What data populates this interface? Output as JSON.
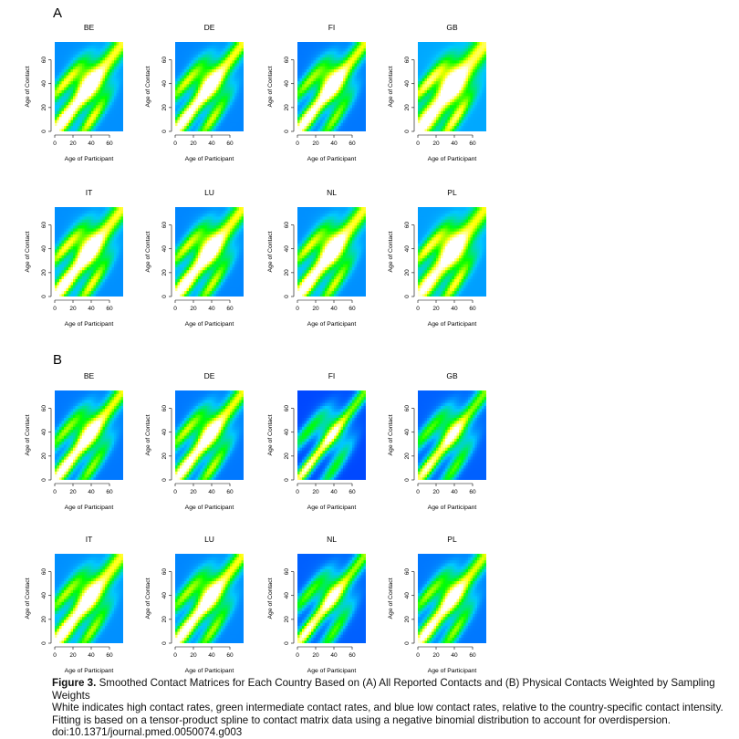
{
  "panels": [
    {
      "letter": "A",
      "label": "All Reported Contacts"
    },
    {
      "letter": "B",
      "label": "Physical Contacts"
    }
  ],
  "caption": {
    "label": "Figure 3.",
    "title": "Smoothed Contact Matrices for Each Country Based on (A) All Reported Contacts and (B) Physical Contacts Weighted by Sampling Weights",
    "body": "White indicates high contact rates, green intermediate contact rates, and blue low contact rates, relative to the country-specific contact intensity. Fitting is based on a tensor-product spline to contact matrix data using a negative binomial distribution to account for overdispersion.",
    "doi": "doi:10.1371/journal.pmed.0050074.g003"
  },
  "colors": {
    "low": "#0000ff",
    "mid_low": "#00c8ff",
    "intermediate": "#00ff00",
    "mid_high": "#ffff00",
    "high": "#ffffff"
  },
  "chart_data": [
    {
      "panel": "A",
      "type": "heatmap",
      "title": "BE",
      "xlabel": "Age of Participant",
      "ylabel": "Age of Contact",
      "xlim": [
        0,
        75
      ],
      "ylim": [
        0,
        75
      ],
      "xticks": [
        0,
        20,
        40,
        60
      ],
      "yticks": [
        0,
        20,
        40,
        60
      ],
      "grid": false,
      "features": {
        "diag_width": 10,
        "diag_intensity": 1.0,
        "parent_intensity": 0.6,
        "off_intensity": 0.5,
        "base": 0.3
      }
    },
    {
      "panel": "A",
      "type": "heatmap",
      "title": "DE",
      "xlabel": "Age of Participant",
      "ylabel": "Age of Contact",
      "xlim": [
        0,
        75
      ],
      "ylim": [
        0,
        75
      ],
      "xticks": [
        0,
        20,
        40,
        60
      ],
      "yticks": [
        0,
        20,
        40,
        60
      ],
      "grid": false,
      "features": {
        "diag_width": 9,
        "diag_intensity": 1.0,
        "parent_intensity": 0.55,
        "off_intensity": 0.45,
        "base": 0.28
      }
    },
    {
      "panel": "A",
      "type": "heatmap",
      "title": "FI",
      "xlabel": "Age of Participant",
      "ylabel": "Age of Contact",
      "xlim": [
        0,
        75
      ],
      "ylim": [
        0,
        75
      ],
      "xticks": [
        0,
        20,
        40,
        60
      ],
      "yticks": [
        0,
        20,
        40,
        60
      ],
      "grid": false,
      "features": {
        "diag_width": 9,
        "diag_intensity": 1.0,
        "parent_intensity": 0.5,
        "off_intensity": 0.55,
        "base": 0.25
      }
    },
    {
      "panel": "A",
      "type": "heatmap",
      "title": "GB",
      "xlabel": "Age of Participant",
      "ylabel": "Age of Contact",
      "xlim": [
        0,
        75
      ],
      "ylim": [
        0,
        75
      ],
      "xticks": [
        0,
        20,
        40,
        60
      ],
      "yticks": [
        0,
        20,
        40,
        60
      ],
      "grid": false,
      "features": {
        "diag_width": 12,
        "diag_intensity": 1.0,
        "parent_intensity": 0.65,
        "off_intensity": 0.55,
        "base": 0.35
      }
    },
    {
      "panel": "A",
      "type": "heatmap",
      "title": "IT",
      "xlabel": "Age of Participant",
      "ylabel": "Age of Contact",
      "xlim": [
        0,
        75
      ],
      "ylim": [
        0,
        75
      ],
      "xticks": [
        0,
        20,
        40,
        60
      ],
      "yticks": [
        0,
        20,
        40,
        60
      ],
      "grid": false,
      "features": {
        "diag_width": 10,
        "diag_intensity": 1.0,
        "parent_intensity": 0.6,
        "off_intensity": 0.5,
        "base": 0.3
      }
    },
    {
      "panel": "A",
      "type": "heatmap",
      "title": "LU",
      "xlabel": "Age of Participant",
      "ylabel": "Age of Contact",
      "xlim": [
        0,
        75
      ],
      "ylim": [
        0,
        75
      ],
      "xticks": [
        0,
        20,
        40,
        60
      ],
      "yticks": [
        0,
        20,
        40,
        60
      ],
      "grid": false,
      "features": {
        "diag_width": 10,
        "diag_intensity": 1.0,
        "parent_intensity": 0.55,
        "off_intensity": 0.5,
        "base": 0.28
      }
    },
    {
      "panel": "A",
      "type": "heatmap",
      "title": "NL",
      "xlabel": "Age of Participant",
      "ylabel": "Age of Contact",
      "xlim": [
        0,
        75
      ],
      "ylim": [
        0,
        75
      ],
      "xticks": [
        0,
        20,
        40,
        60
      ],
      "yticks": [
        0,
        20,
        40,
        60
      ],
      "grid": false,
      "features": {
        "diag_width": 10,
        "diag_intensity": 1.0,
        "parent_intensity": 0.55,
        "off_intensity": 0.5,
        "base": 0.3
      }
    },
    {
      "panel": "A",
      "type": "heatmap",
      "title": "PL",
      "xlabel": "Age of Participant",
      "ylabel": "Age of Contact",
      "xlim": [
        0,
        75
      ],
      "ylim": [
        0,
        75
      ],
      "xticks": [
        0,
        20,
        40,
        60
      ],
      "yticks": [
        0,
        20,
        40,
        60
      ],
      "grid": false,
      "features": {
        "diag_width": 11,
        "diag_intensity": 0.9,
        "parent_intensity": 0.6,
        "off_intensity": 0.55,
        "base": 0.33
      }
    },
    {
      "panel": "B",
      "type": "heatmap",
      "title": "BE",
      "xlabel": "Age of Participant",
      "ylabel": "Age of Contact",
      "xlim": [
        0,
        75
      ],
      "ylim": [
        0,
        75
      ],
      "xticks": [
        0,
        20,
        40,
        60
      ],
      "yticks": [
        0,
        20,
        40,
        60
      ],
      "grid": false,
      "features": {
        "diag_width": 9,
        "diag_intensity": 1.0,
        "parent_intensity": 0.5,
        "off_intensity": 0.4,
        "base": 0.25
      }
    },
    {
      "panel": "B",
      "type": "heatmap",
      "title": "DE",
      "xlabel": "Age of Participant",
      "ylabel": "Age of Contact",
      "xlim": [
        0,
        75
      ],
      "ylim": [
        0,
        75
      ],
      "xticks": [
        0,
        20,
        40,
        60
      ],
      "yticks": [
        0,
        20,
        40,
        60
      ],
      "grid": false,
      "features": {
        "diag_width": 9,
        "diag_intensity": 1.0,
        "parent_intensity": 0.55,
        "off_intensity": 0.4,
        "base": 0.25
      }
    },
    {
      "panel": "B",
      "type": "heatmap",
      "title": "FI",
      "xlabel": "Age of Participant",
      "ylabel": "Age of Contact",
      "xlim": [
        0,
        75
      ],
      "ylim": [
        0,
        75
      ],
      "xticks": [
        0,
        20,
        40,
        60
      ],
      "yticks": [
        0,
        20,
        40,
        60
      ],
      "grid": false,
      "features": {
        "diag_width": 7,
        "diag_intensity": 0.9,
        "parent_intensity": 0.4,
        "off_intensity": 0.3,
        "base": 0.15
      }
    },
    {
      "panel": "B",
      "type": "heatmap",
      "title": "GB",
      "xlabel": "Age of Participant",
      "ylabel": "Age of Contact",
      "xlim": [
        0,
        75
      ],
      "ylim": [
        0,
        75
      ],
      "xticks": [
        0,
        20,
        40,
        60
      ],
      "yticks": [
        0,
        20,
        40,
        60
      ],
      "grid": false,
      "features": {
        "diag_width": 8,
        "diag_intensity": 0.85,
        "parent_intensity": 0.45,
        "off_intensity": 0.35,
        "base": 0.2
      }
    },
    {
      "panel": "B",
      "type": "heatmap",
      "title": "IT",
      "xlabel": "Age of Participant",
      "ylabel": "Age of Contact",
      "xlim": [
        0,
        75
      ],
      "ylim": [
        0,
        75
      ],
      "xticks": [
        0,
        20,
        40,
        60
      ],
      "yticks": [
        0,
        20,
        40,
        60
      ],
      "grid": false,
      "features": {
        "diag_width": 10,
        "diag_intensity": 1.0,
        "parent_intensity": 0.5,
        "off_intensity": 0.4,
        "base": 0.3
      }
    },
    {
      "panel": "B",
      "type": "heatmap",
      "title": "LU",
      "xlabel": "Age of Participant",
      "ylabel": "Age of Contact",
      "xlim": [
        0,
        75
      ],
      "ylim": [
        0,
        75
      ],
      "xticks": [
        0,
        20,
        40,
        60
      ],
      "yticks": [
        0,
        20,
        40,
        60
      ],
      "grid": false,
      "features": {
        "diag_width": 9,
        "diag_intensity": 1.0,
        "parent_intensity": 0.5,
        "off_intensity": 0.45,
        "base": 0.28
      }
    },
    {
      "panel": "B",
      "type": "heatmap",
      "title": "NL",
      "xlabel": "Age of Participant",
      "ylabel": "Age of Contact",
      "xlim": [
        0,
        75
      ],
      "ylim": [
        0,
        75
      ],
      "xticks": [
        0,
        20,
        40,
        60
      ],
      "yticks": [
        0,
        20,
        40,
        60
      ],
      "grid": false,
      "features": {
        "diag_width": 8,
        "diag_intensity": 0.9,
        "parent_intensity": 0.45,
        "off_intensity": 0.35,
        "base": 0.2
      }
    },
    {
      "panel": "B",
      "type": "heatmap",
      "title": "PL",
      "xlabel": "Age of Participant",
      "ylabel": "Age of Contact",
      "xlim": [
        0,
        75
      ],
      "ylim": [
        0,
        75
      ],
      "xticks": [
        0,
        20,
        40,
        60
      ],
      "yticks": [
        0,
        20,
        40,
        60
      ],
      "grid": false,
      "features": {
        "diag_width": 9,
        "diag_intensity": 0.95,
        "parent_intensity": 0.5,
        "off_intensity": 0.4,
        "base": 0.25
      }
    }
  ]
}
